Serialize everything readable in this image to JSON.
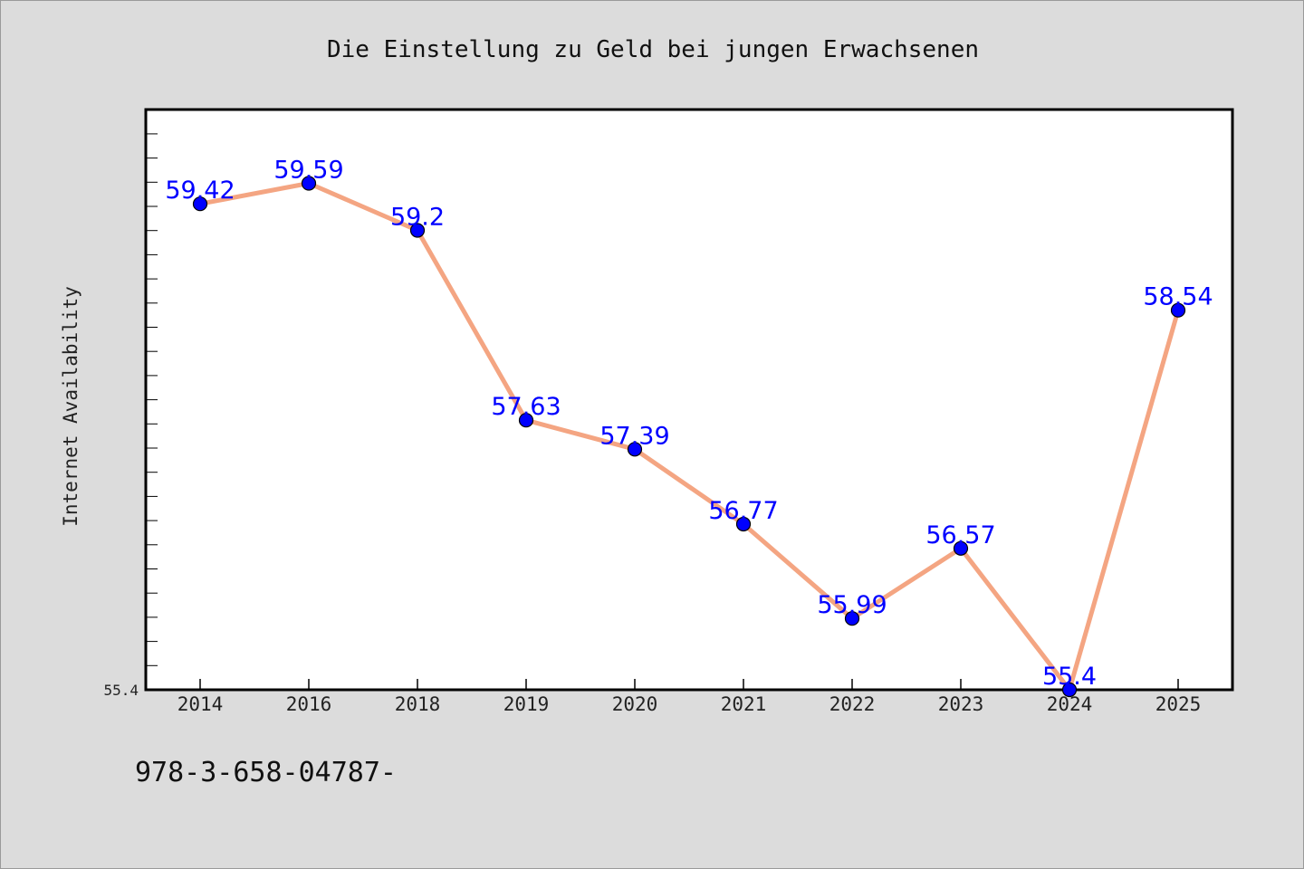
{
  "chart_data": {
    "type": "line",
    "title": "Die Einstellung zu Geld bei jungen Erwachsenen",
    "xlabel": "",
    "ylabel": "Internet Availability",
    "categories": [
      "2014",
      "2016",
      "2018",
      "2019",
      "2020",
      "2021",
      "2022",
      "2023",
      "2024",
      "2025"
    ],
    "series": [
      {
        "values": [
          59.42,
          59.59,
          59.2,
          57.63,
          57.39,
          56.77,
          55.99,
          56.57,
          55.4,
          58.54
        ],
        "labels": [
          "59.42",
          "59.59",
          "59.2",
          "57.63",
          "57.39",
          "56.77",
          "55.99",
          "56.57",
          "55.4",
          "58.54"
        ],
        "line_color": "#f4a582",
        "marker_color": "#0000ff"
      }
    ],
    "ylim": [
      55.4,
      60.2
    ],
    "y_tick_labels": [
      "55.4"
    ],
    "grid": false,
    "legend": "none"
  },
  "footer": {
    "note": "978-3-658-04787-"
  },
  "colors": {
    "background": "#dcdcdc",
    "plot_background": "#ffffff",
    "label_text": "#0000ff"
  }
}
